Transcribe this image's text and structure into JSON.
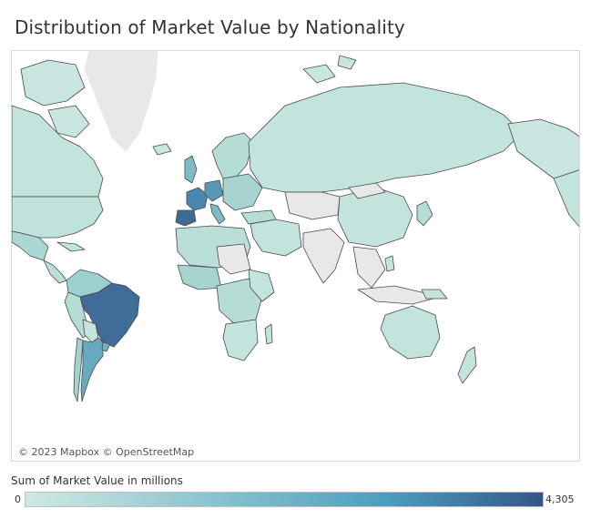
{
  "title": "Distribution of Market Value by Nationality",
  "attribution": "© 2023 Mapbox © OpenStreetMap",
  "legend": {
    "title": "Sum of Market Value in millions",
    "min_label": "0",
    "max_label": "4,305",
    "color_low": "#cfe9e2",
    "color_mid": "#4a9fbd",
    "color_high": "#34568a"
  },
  "colors": {
    "ocean": "#ffffff",
    "no_data": "#e8e8e8",
    "border": "#4a4a4a"
  }
}
